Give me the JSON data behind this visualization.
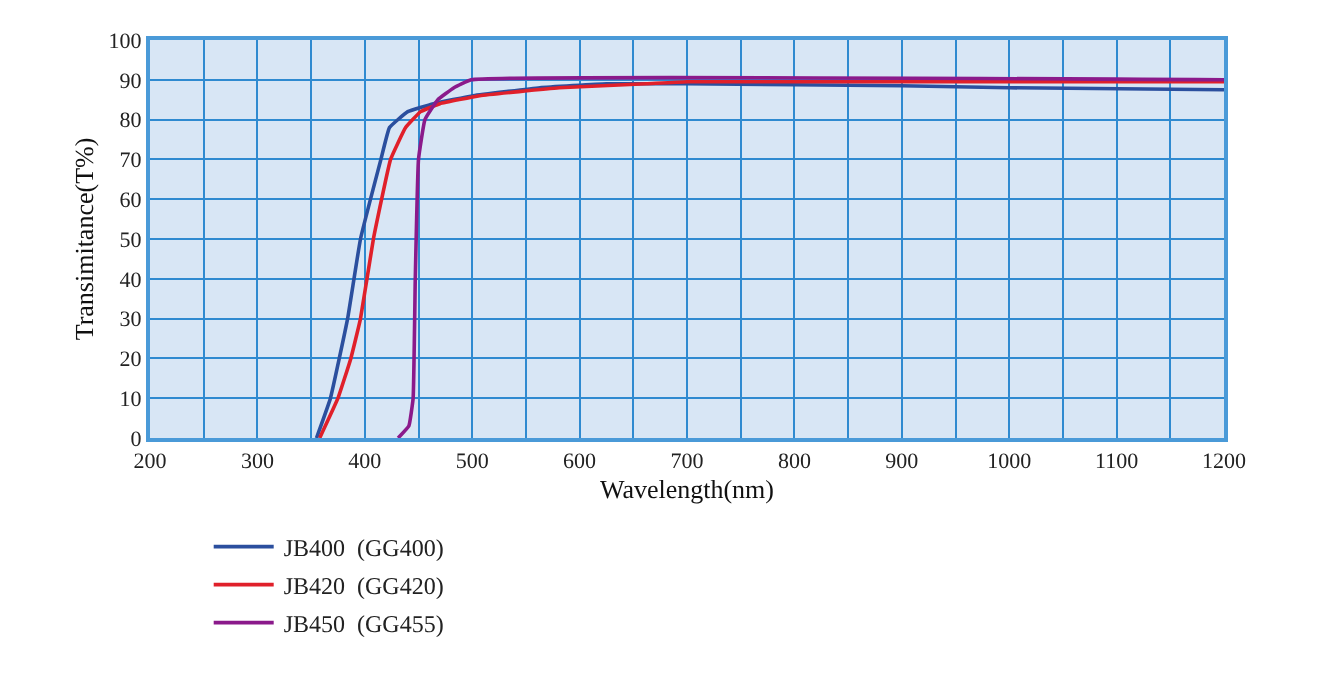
{
  "chart_data": {
    "type": "line",
    "xlabel": "Wavelength(nm)",
    "ylabel": "Transimitance(T%)",
    "xlim": [
      200,
      1200
    ],
    "ylim": [
      0,
      100
    ],
    "xticks": [
      200,
      {
        "value": 250,
        "label": null
      },
      300,
      {
        "value": 350,
        "label": null
      },
      400,
      {
        "value": 450,
        "label": null
      },
      500,
      {
        "value": 550,
        "label": null
      },
      600,
      {
        "value": 650,
        "label": null
      },
      700,
      {
        "value": 750,
        "label": null
      },
      800,
      {
        "value": 850,
        "label": null
      },
      900,
      {
        "value": 950,
        "label": null
      },
      1000,
      {
        "value": 1050,
        "label": null
      },
      1100,
      {
        "value": 1150,
        "label": null
      },
      1200
    ],
    "yticks": [
      0,
      10,
      20,
      30,
      40,
      50,
      60,
      70,
      80,
      90,
      100
    ],
    "grid": true,
    "legend": "bottom",
    "marker": "none",
    "line_style": "solid",
    "series": [
      {
        "name": "JB400  (GG400)",
        "color": "#2b4f9e",
        "x": [
          355,
          368,
          384,
          396,
          415,
          423,
          440,
          464,
          501,
          563,
          625,
          700,
          900,
          1000,
          1200
        ],
        "values": [
          0,
          10,
          30,
          50,
          70,
          78,
          82,
          84,
          86,
          88,
          89,
          89,
          88.5,
          88,
          87.5
        ]
      },
      {
        "name": "JB420  (GG420)",
        "color": "#e0202a",
        "x": [
          358,
          375,
          387,
          396,
          408,
          424,
          438,
          452,
          470,
          507,
          581,
          662,
          700,
          1200
        ],
        "values": [
          0,
          10,
          20,
          30,
          50,
          70,
          78,
          82,
          84,
          86,
          88,
          89,
          89.5,
          89.5
        ]
      },
      {
        "name": "JB450  (GG455)",
        "color": "#8b1a8b",
        "x": [
          431,
          441,
          445,
          447,
          450,
          456,
          468,
          483,
          499,
          1200
        ],
        "values": [
          0,
          3,
          10,
          40,
          70,
          80,
          85,
          88,
          90,
          90
        ]
      }
    ]
  }
}
